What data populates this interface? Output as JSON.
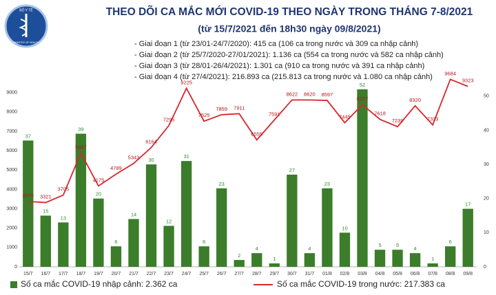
{
  "chart_data": {
    "type": "bar-line",
    "title": "THEO DÕI CA MẮC MỚI COVID-19 THEO NGÀY TRONG THÁNG 7-8/2021",
    "subtitle": "(từ 15/7/2021 đến 18h30 ngày 09/8/2021)",
    "logo_text": [
      "BỘ Y TẾ",
      "MINISTRY OF HEALTH"
    ],
    "annotations": [
      "- Giai đoạn 1 (từ 23/01-24/7/2020): 415 ca (106 ca trong nước và 309 ca nhập cảnh)",
      "- Giai đoạn 2 (từ 25/7/2020-27/01/2021): 1.136 ca (554 ca trong nước và 582 ca nhập cảnh)",
      "- Giai đoạn 3 (từ 28/01-26/4/2021): 1.301 ca (910 ca trong nước và 391 ca nhập cảnh)",
      "- Giai đoạn 4 (từ 27/4/2021): 216.893 ca (215.813 ca trong nước và 1.080 ca nhập cảnh)"
    ],
    "categories": [
      "15/7",
      "16/7",
      "17/7",
      "18/7",
      "19/7",
      "20/7",
      "21/7",
      "22/7",
      "23/7",
      "24/7",
      "25/7",
      "26/7",
      "27/7",
      "28/7",
      "29/7",
      "30/7",
      "31/7",
      "01/8",
      "02/8",
      "03/8",
      "04/8",
      "05/8",
      "06/8",
      "07/8",
      "08/8",
      "09/8"
    ],
    "series": [
      {
        "name": "Số ca mắc COVID-19 nhập cảnh: 2.362 ca",
        "type": "bar",
        "axis": "y2",
        "color": "#3b7d2a",
        "values": [
          37,
          15,
          13,
          39,
          20,
          6,
          14,
          30,
          12,
          31,
          6,
          23,
          2,
          4,
          1,
          27,
          4,
          23,
          10,
          52,
          5,
          5,
          4,
          1,
          6,
          17
        ]
      },
      {
        "name": "Số ca mắc COVID-19 trong nước: 217.383 ca",
        "type": "line",
        "color": "#d7262b",
        "values": [
          3379,
          3321,
          3705,
          5887,
          4175,
          4789,
          5343,
          6164,
          7295,
          9225,
          7525,
          7859,
          7911,
          6555,
          7591,
          8622,
          8620,
          8597,
          7445,
          8377,
          7618,
          7239,
          8320,
          7333,
          9684,
          9323
        ]
      }
    ],
    "ylim": [
      0,
      9700
    ],
    "yticks": [
      0,
      1000,
      2000,
      3000,
      4000,
      5000,
      6000,
      7000,
      8000,
      9000
    ],
    "y2lim": [
      0,
      55
    ],
    "y2ticks": [
      0,
      10,
      20,
      30,
      40,
      50
    ],
    "grid": false
  }
}
